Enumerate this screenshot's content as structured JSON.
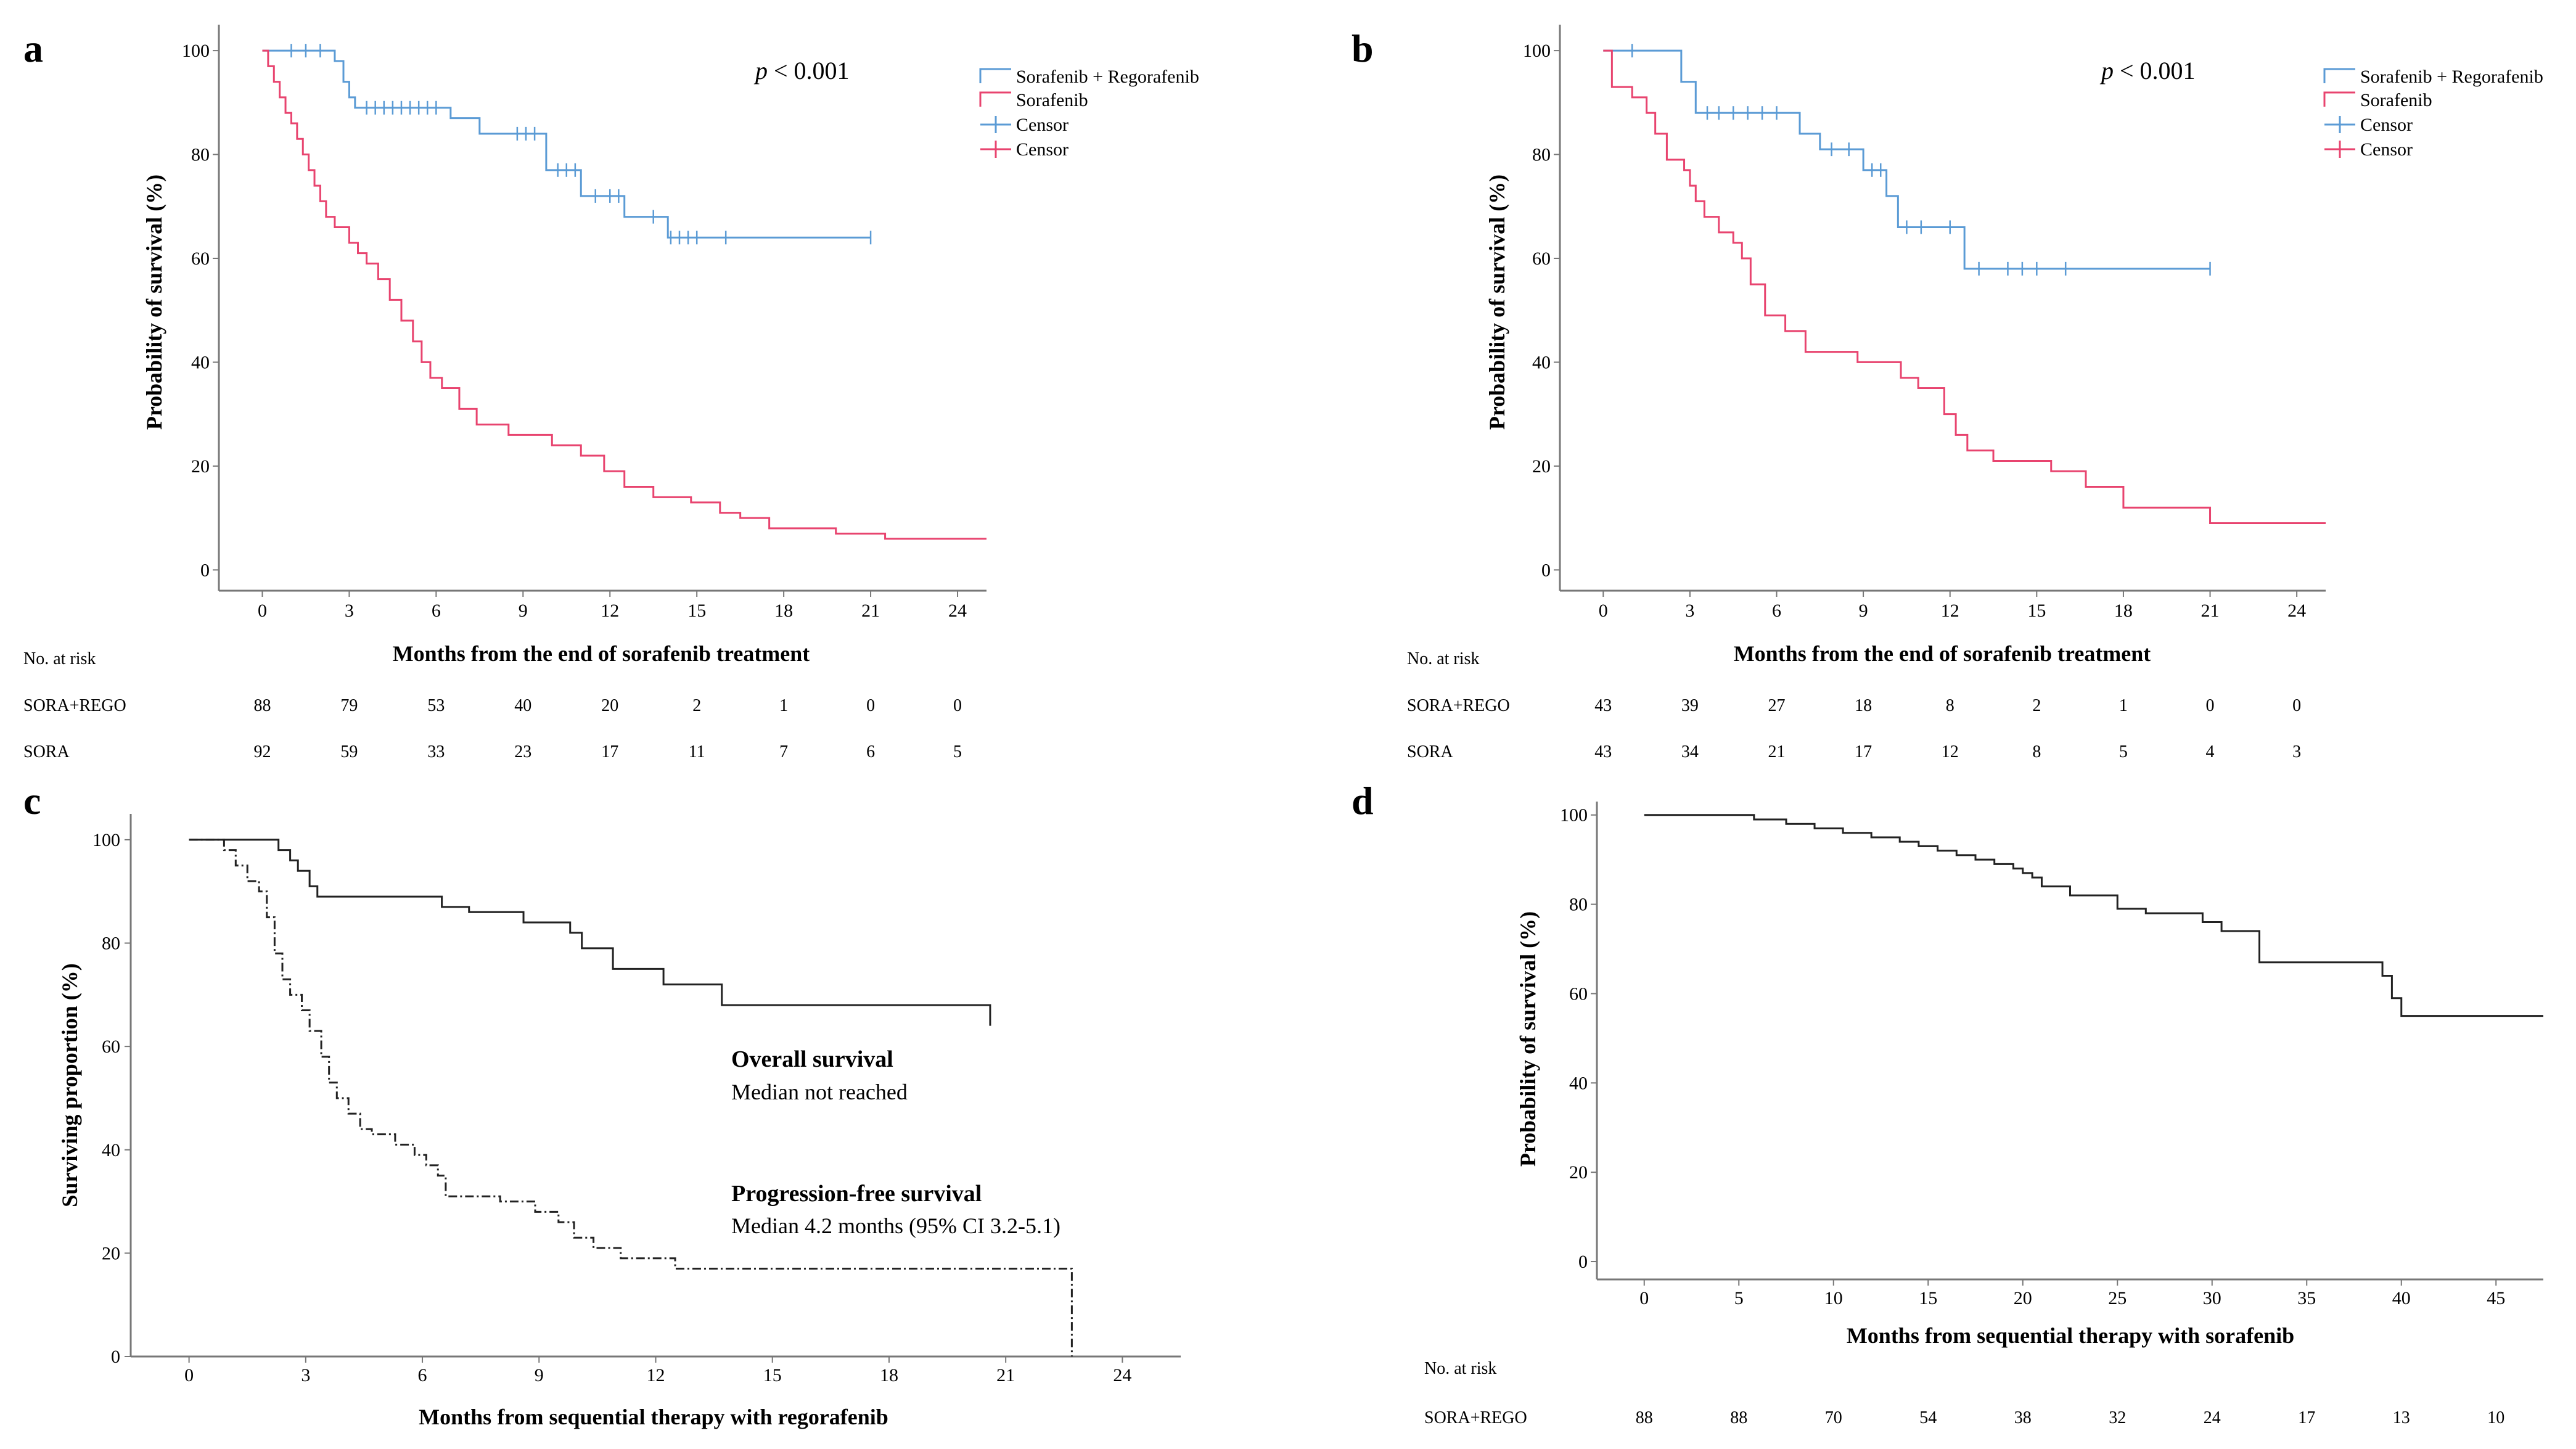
{
  "chart_data": [
    {
      "panel": "a",
      "type": "line",
      "subtype": "kaplan-meier",
      "xlabel": "Months from the end of sorafenib treatment",
      "ylabel": "Probability of survival (%)",
      "xlim": [
        -1.5,
        25
      ],
      "ylim": [
        -4,
        105
      ],
      "xticks": [
        0,
        3,
        6,
        9,
        12,
        15,
        18,
        21,
        24
      ],
      "yticks": [
        0,
        20,
        40,
        60,
        80,
        100
      ],
      "annotation_p_letter": "p",
      "annotation_p_rest": " < 0.001",
      "legend": [
        "Sorafenib + Regorafenib",
        "Sorafenib",
        "Censor",
        "Censor"
      ],
      "series": [
        {
          "name": "Sorafenib + Regorafenib",
          "color": "#5b9bd5",
          "x": [
            0,
            2.5,
            2.8,
            3.0,
            3.2,
            6.5,
            7.5,
            9.8,
            11,
            12.5,
            14
          ],
          "y": [
            100,
            98,
            94,
            91,
            89,
            87,
            84,
            77,
            72,
            68,
            64
          ],
          "end": 21
        },
        {
          "name": "Sorafenib",
          "color": "#e8446f",
          "x": [
            0,
            0.2,
            0.4,
            0.6,
            0.8,
            1,
            1.2,
            1.4,
            1.6,
            1.8,
            2,
            2.2,
            2.5,
            3,
            3.3,
            3.6,
            4,
            4.4,
            4.8,
            5.2,
            5.5,
            5.8,
            6.2,
            6.8,
            7.4,
            8.5,
            10,
            11,
            11.8,
            12.5,
            13.5,
            14.8,
            15.8,
            16.5,
            17.5,
            19.8,
            21.5
          ],
          "y": [
            100,
            97,
            94,
            91,
            88,
            86,
            83,
            80,
            77,
            74,
            71,
            68,
            66,
            63,
            61,
            59,
            56,
            52,
            48,
            44,
            40,
            37,
            35,
            31,
            28,
            26,
            24,
            22,
            19,
            16,
            14,
            13,
            11,
            10,
            8,
            7,
            6
          ],
          "end": 25
        },
        {
          "name": "Censor",
          "color": "#5b9bd5",
          "marks": "sora_rego",
          "x": [
            1.0,
            1.5,
            2.0,
            3.6,
            3.9,
            4.2,
            4.5,
            4.8,
            5.1,
            5.4,
            5.7,
            6.0,
            8.8,
            9.1,
            9.4,
            10.2,
            10.5,
            10.8,
            11.5,
            12.0,
            12.3,
            13.5,
            14.1,
            14.4,
            14.7,
            15.0,
            16.0,
            21.0
          ],
          "y": [
            100,
            100,
            100,
            89,
            89,
            89,
            89,
            89,
            89,
            89,
            89,
            89,
            84,
            84,
            84,
            77,
            77,
            77,
            72,
            72,
            72,
            68,
            64,
            64,
            64,
            64,
            64,
            64
          ]
        },
        {
          "name": "Censor",
          "color": "#e8446f",
          "marks": "sora",
          "x": [],
          "y": []
        }
      ],
      "risk_table": {
        "header": "No. at risk",
        "rows": [
          {
            "label": "SORA+REGO",
            "values": [
              "88",
              "79",
              "53",
              "40",
              "20",
              "2",
              "1",
              "0",
              "0"
            ]
          },
          {
            "label": "SORA",
            "values": [
              "92",
              "59",
              "33",
              "23",
              "17",
              "11",
              "7",
              "6",
              "5"
            ]
          }
        ]
      }
    },
    {
      "panel": "b",
      "type": "line",
      "subtype": "kaplan-meier",
      "xlabel": "Months from the end of sorafenib treatment",
      "ylabel": "Probability of survival (%)",
      "xlim": [
        -1.5,
        25
      ],
      "ylim": [
        -4,
        105
      ],
      "xticks": [
        0,
        3,
        6,
        9,
        12,
        15,
        18,
        21,
        24
      ],
      "yticks": [
        0,
        20,
        40,
        60,
        80,
        100
      ],
      "annotation_p_letter": "p",
      "annotation_p_rest": " < 0.001",
      "legend": [
        "Sorafenib + Regorafenib",
        "Sorafenib",
        "Censor",
        "Censor"
      ],
      "series": [
        {
          "name": "Sorafenib + Regorafenib",
          "color": "#5b9bd5",
          "x": [
            0,
            2.7,
            3.2,
            6.8,
            7.5,
            9.0,
            9.8,
            10.2,
            12.5
          ],
          "y": [
            100,
            94,
            88,
            84,
            81,
            77,
            72,
            66,
            58
          ],
          "end": 21
        },
        {
          "name": "Sorafenib",
          "color": "#e8446f",
          "x": [
            0,
            0.3,
            1,
            1.5,
            1.8,
            2.2,
            2.8,
            3,
            3.2,
            3.5,
            4,
            4.5,
            4.8,
            5.1,
            5.6,
            6.3,
            7.0,
            8.8,
            10.3,
            10.9,
            11.8,
            12.2,
            12.6,
            13.5,
            15.5,
            16.7,
            18.0,
            21.0
          ],
          "y": [
            100,
            93,
            91,
            88,
            84,
            79,
            77,
            74,
            71,
            68,
            65,
            63,
            60,
            55,
            49,
            46,
            42,
            40,
            37,
            35,
            30,
            26,
            23,
            21,
            19,
            16,
            12,
            9
          ],
          "end": 25
        },
        {
          "name": "Censor",
          "color": "#5b9bd5",
          "marks": "sora_rego",
          "x": [
            1.0,
            3.6,
            4.0,
            4.5,
            5.0,
            5.5,
            6.0,
            7.9,
            8.5,
            9.3,
            9.6,
            10.5,
            11.0,
            12.0,
            13.0,
            14.0,
            14.5,
            15.0,
            16.0,
            21.0
          ],
          "y": [
            100,
            88,
            88,
            88,
            88,
            88,
            88,
            81,
            81,
            77,
            77,
            66,
            66,
            66,
            58,
            58,
            58,
            58,
            58,
            58
          ]
        },
        {
          "name": "Censor",
          "color": "#e8446f",
          "marks": "sora",
          "x": [],
          "y": []
        }
      ],
      "risk_table": {
        "header": "No. at risk",
        "rows": [
          {
            "label": "SORA+REGO",
            "values": [
              "43",
              "39",
              "27",
              "18",
              "8",
              "2",
              "1",
              "0",
              "0"
            ]
          },
          {
            "label": "SORA",
            "values": [
              "43",
              "34",
              "21",
              "17",
              "12",
              "8",
              "5",
              "4",
              "3"
            ]
          }
        ]
      }
    },
    {
      "panel": "c",
      "type": "line",
      "subtype": "kaplan-meier",
      "xlabel": "Months from sequential therapy with regorafenib",
      "ylabel": "Surviving proportion (%)",
      "xlim": [
        -1.5,
        25.5
      ],
      "ylim": [
        0,
        105
      ],
      "xticks": [
        0,
        3,
        6,
        9,
        12,
        15,
        18,
        21,
        24
      ],
      "yticks": [
        0,
        20,
        40,
        60,
        80,
        100
      ],
      "annotations": [
        {
          "title": "Overall survival",
          "text": "Median not reached"
        },
        {
          "title": "Progression-free survival",
          "text": "Median 4.2 months (95% CI 3.2-5.1)"
        }
      ],
      "series": [
        {
          "name": "Overall survival",
          "style": "solid",
          "x": [
            0,
            2.3,
            2.6,
            2.8,
            3.1,
            3.3,
            3.7,
            6,
            6.5,
            7.2,
            8.6,
            9.8,
            10.1,
            10.9,
            12.2,
            13.7
          ],
          "y": [
            100,
            98,
            96,
            94,
            91,
            89,
            89,
            89,
            87,
            86,
            84,
            82,
            79,
            75,
            72,
            68
          ],
          "end": 20.6,
          "endY": 64
        },
        {
          "name": "Progression-free survival",
          "style": "dashed",
          "x": [
            0,
            0.9,
            1.2,
            1.5,
            1.8,
            2.0,
            2.2,
            2.4,
            2.6,
            2.9,
            3.1,
            3.4,
            3.6,
            3.8,
            4.1,
            4.4,
            4.7,
            5.3,
            5.8,
            6.1,
            6.4,
            6.6,
            8.0,
            8.9,
            9.5,
            9.9,
            10.4,
            11.1,
            12.5
          ],
          "y": [
            100,
            98,
            95,
            92,
            90,
            85,
            78,
            73,
            70,
            67,
            63,
            58,
            53,
            50,
            47,
            44,
            43,
            41,
            39,
            37,
            35,
            31,
            30,
            28,
            26,
            23,
            21,
            19,
            17
          ],
          "end": 22.7,
          "endY": 0
        }
      ]
    },
    {
      "panel": "d",
      "type": "line",
      "subtype": "kaplan-meier",
      "xlabel": "Months from sequential therapy with sorafenib",
      "ylabel": "Probability of survival (%)",
      "xlim": [
        -2.5,
        47.5
      ],
      "ylim": [
        -4,
        103
      ],
      "xticks": [
        0,
        5,
        10,
        15,
        20,
        25,
        30,
        35,
        40,
        45
      ],
      "yticks": [
        0,
        20,
        40,
        60,
        80,
        100
      ],
      "series": [
        {
          "name": "Overall survival",
          "style": "solid",
          "x": [
            0,
            5.8,
            7.5,
            9,
            10.5,
            12,
            13.5,
            14.5,
            15.5,
            16.5,
            17.5,
            18.5,
            19.5,
            20,
            20.5,
            21,
            22.5,
            25,
            26.5,
            29.5,
            30.5,
            32.5,
            39,
            39.5,
            40,
            40.5
          ],
          "y": [
            100,
            99,
            98,
            97,
            96,
            95,
            94,
            93,
            92,
            91,
            90,
            89,
            88,
            87,
            86,
            84,
            82,
            79,
            78,
            76,
            74,
            67,
            64,
            59,
            55,
            55
          ],
          "end": 47.5
        }
      ],
      "risk_table": {
        "header": "No. at risk",
        "rows": [
          {
            "label": "SORA+REGO",
            "values": [
              "88",
              "88",
              "70",
              "54",
              "38",
              "32",
              "24",
              "17",
              "13",
              "10"
            ]
          }
        ]
      }
    }
  ],
  "colors": {
    "blue": "#5b9bd5",
    "red": "#e8446f",
    "black": "#222222",
    "axis": "#666666"
  }
}
